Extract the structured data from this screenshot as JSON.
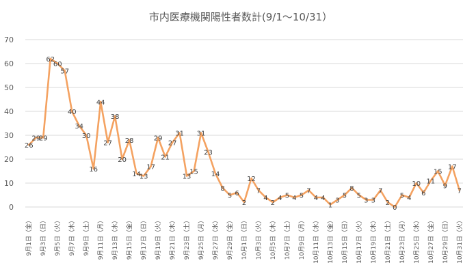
{
  "chart_data": {
    "type": "line",
    "title": "市内医療機関陽性者数計(9/1～10/31）",
    "xlabel": "",
    "ylabel": "",
    "ylim": [
      0,
      70
    ],
    "yticks": [
      0,
      10,
      20,
      30,
      40,
      50,
      60,
      70
    ],
    "grid": true,
    "legend": "none",
    "line_color": "#f4a261",
    "x": [
      "9/1",
      "9/2",
      "9/3",
      "9/4",
      "9/5",
      "9/6",
      "9/7",
      "9/8",
      "9/9",
      "9/10",
      "9/11",
      "9/12",
      "9/13",
      "9/14",
      "9/15",
      "9/16",
      "9/17",
      "9/18",
      "9/19",
      "9/20",
      "9/21",
      "9/22",
      "9/23",
      "9/24",
      "9/25",
      "9/26",
      "9/27",
      "9/28",
      "9/29",
      "9/30",
      "10/1",
      "10/2",
      "10/3",
      "10/4",
      "10/5",
      "10/6",
      "10/7",
      "10/8",
      "10/9",
      "10/10",
      "10/11",
      "10/12",
      "10/13",
      "10/14",
      "10/15",
      "10/16",
      "10/17",
      "10/18",
      "10/19",
      "10/20",
      "10/21",
      "10/22",
      "10/23",
      "10/24",
      "10/25",
      "10/26",
      "10/27",
      "10/28",
      "10/29",
      "10/30",
      "10/31"
    ],
    "values": [
      26,
      29,
      29,
      62,
      60,
      57,
      40,
      34,
      30,
      16,
      44,
      27,
      38,
      20,
      28,
      14,
      13,
      17,
      29,
      21,
      27,
      31,
      13,
      15,
      31,
      23,
      14,
      8,
      5,
      6,
      2,
      12,
      7,
      4,
      2,
      4,
      5,
      4,
      5,
      7,
      4,
      4,
      1,
      3,
      5,
      8,
      5,
      3,
      3,
      7,
      2,
      0,
      5,
      4,
      10,
      6,
      11,
      15,
      9,
      17,
      7
    ],
    "tick_labels": [
      "9月1日（金）",
      "9月3日（日）",
      "9月5日（火）",
      "9月7日（木）",
      "9月9日（土）",
      "9月11日（月）",
      "9月13日（水）",
      "9月15日（金）",
      "9月17日（日）",
      "9月19日（火）",
      "9月21日（木）",
      "9月23日（土）",
      "9月25日（月）",
      "9月27日（水）",
      "9月29日（金）",
      "10月1日（日）",
      "10月3日（火）",
      "10月5日（木）",
      "10月7日（土）",
      "10月9日（月）",
      "10月11日（水）",
      "10月13日（金）",
      "10月15日（日）",
      "10月17日（火）",
      "10月19日（木）",
      "10月21日（土）",
      "10月23日（月）",
      "10月25日（水）",
      "10月27日（金）",
      "10月29日（日）",
      "10月31日（火）"
    ]
  }
}
